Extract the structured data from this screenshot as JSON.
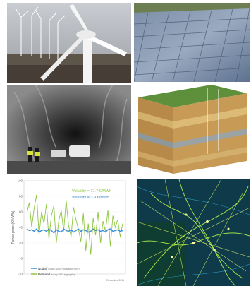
{
  "chart_data": {
    "type": "line",
    "ylabel": "Power price (€/MWh)",
    "ylim": [
      -20,
      100
    ],
    "yticks": [
      "100",
      "80",
      "60",
      "40",
      "20",
      "0",
      "-20"
    ],
    "annotations": [
      "Volatility = 17.7 €/MWh",
      "Volatility = 3.9 €/MWh"
    ],
    "legend_placement": "bottom-left",
    "series": [
      {
        "name": "Nodal",
        "description": "(hourly Nord Pool system price)",
        "color": "#3a8fd4",
        "values": [
          38,
          36,
          37,
          35,
          38,
          34,
          36,
          37,
          35,
          38,
          36,
          33,
          37,
          35,
          34,
          38,
          36,
          35,
          37,
          34,
          36,
          38,
          35,
          37,
          36,
          34,
          35,
          38,
          36,
          37,
          35,
          36,
          34,
          37,
          38,
          35,
          36,
          37,
          35,
          36
        ]
      },
      {
        "name": "Demand",
        "description": "(hourly NRG aggregate)",
        "color": "#8cc63f",
        "values": [
          58,
          72,
          40,
          65,
          82,
          30,
          60,
          45,
          70,
          25,
          55,
          68,
          20,
          48,
          62,
          35,
          75,
          42,
          28,
          66,
          50,
          38,
          22,
          58,
          10,
          45,
          5,
          52,
          30,
          60,
          20,
          48,
          35,
          62,
          15,
          55,
          40,
          50,
          28,
          45
        ]
      }
    ],
    "source": "December 2011"
  }
}
